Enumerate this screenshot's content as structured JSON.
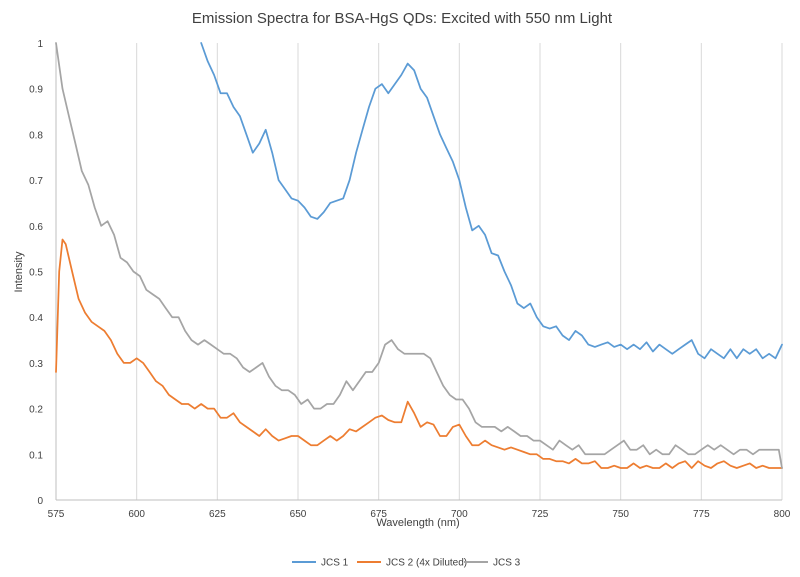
{
  "chart_data": {
    "type": "line",
    "title": "Emission Spectra for BSA-HgS QDs: Excited with 550 nm Light",
    "xlabel": "Wavelength (nm)",
    "ylabel": "Intensity",
    "xlim": [
      575,
      800
    ],
    "ylim": [
      0,
      1
    ],
    "x_ticks": [
      575,
      600,
      625,
      650,
      675,
      700,
      725,
      750,
      775,
      800
    ],
    "y_ticks": [
      0,
      0.1,
      0.2,
      0.3,
      0.4,
      0.5,
      0.6,
      0.7,
      0.8,
      0.9,
      1
    ],
    "x_tick_labels": [
      "575",
      "600",
      "625",
      "650",
      "675",
      "700",
      "725",
      "750",
      "775",
      "800"
    ],
    "y_tick_labels": [
      "0",
      "0.1",
      "0.2",
      "0.3",
      "0.4",
      "0.5",
      "0.6",
      "0.7",
      "0.8",
      "0.9",
      "1"
    ],
    "grid": "vertical",
    "legend_position": "bottom",
    "series": [
      {
        "name": "JCS 1",
        "color": "#5b9bd5",
        "x": [
          620,
          622,
          624,
          626,
          628,
          630,
          632,
          634,
          636,
          638,
          640,
          642,
          644,
          646,
          648,
          650,
          652,
          654,
          656,
          658,
          660,
          662,
          664,
          666,
          668,
          670,
          672,
          674,
          676,
          678,
          680,
          682,
          684,
          686,
          688,
          690,
          692,
          694,
          696,
          698,
          700,
          702,
          704,
          706,
          708,
          710,
          712,
          714,
          716,
          718,
          720,
          722,
          724,
          726,
          728,
          730,
          732,
          734,
          736,
          738,
          740,
          742,
          744,
          746,
          748,
          750,
          752,
          754,
          756,
          758,
          760,
          762,
          764,
          766,
          768,
          770,
          772,
          774,
          776,
          778,
          780,
          782,
          784,
          786,
          788,
          790,
          792,
          794,
          796,
          798,
          800
        ],
        "y": [
          1.0,
          0.96,
          0.93,
          0.89,
          0.89,
          0.86,
          0.84,
          0.8,
          0.76,
          0.78,
          0.81,
          0.76,
          0.7,
          0.68,
          0.66,
          0.655,
          0.64,
          0.62,
          0.615,
          0.63,
          0.65,
          0.655,
          0.66,
          0.7,
          0.76,
          0.81,
          0.86,
          0.9,
          0.91,
          0.89,
          0.91,
          0.93,
          0.955,
          0.94,
          0.9,
          0.88,
          0.84,
          0.8,
          0.77,
          0.74,
          0.7,
          0.64,
          0.59,
          0.6,
          0.58,
          0.54,
          0.535,
          0.5,
          0.47,
          0.43,
          0.42,
          0.43,
          0.4,
          0.38,
          0.375,
          0.38,
          0.36,
          0.35,
          0.37,
          0.36,
          0.34,
          0.335,
          0.34,
          0.345,
          0.335,
          0.34,
          0.33,
          0.34,
          0.33,
          0.345,
          0.325,
          0.34,
          0.33,
          0.32,
          0.33,
          0.34,
          0.35,
          0.32,
          0.31,
          0.33,
          0.32,
          0.31,
          0.33,
          0.31,
          0.33,
          0.32,
          0.33,
          0.31,
          0.32,
          0.31,
          0.34
        ]
      },
      {
        "name": "JCS 2 (4x Diluted)",
        "color": "#ed7d31",
        "x": [
          575,
          576,
          577,
          578,
          580,
          582,
          584,
          586,
          588,
          590,
          592,
          594,
          596,
          598,
          600,
          602,
          604,
          606,
          608,
          610,
          612,
          614,
          616,
          618,
          620,
          622,
          624,
          626,
          628,
          630,
          632,
          634,
          636,
          638,
          640,
          642,
          644,
          646,
          648,
          650,
          652,
          654,
          656,
          658,
          660,
          662,
          664,
          666,
          668,
          670,
          672,
          674,
          676,
          678,
          680,
          682,
          684,
          686,
          688,
          690,
          692,
          694,
          696,
          698,
          700,
          702,
          704,
          706,
          708,
          710,
          712,
          714,
          716,
          718,
          720,
          722,
          724,
          726,
          728,
          730,
          732,
          734,
          736,
          738,
          740,
          742,
          744,
          746,
          748,
          750,
          752,
          754,
          756,
          758,
          760,
          762,
          764,
          766,
          768,
          770,
          772,
          774,
          776,
          778,
          780,
          782,
          784,
          786,
          788,
          790,
          792,
          794,
          796,
          798,
          800
        ],
        "y": [
          0.28,
          0.5,
          0.57,
          0.56,
          0.5,
          0.44,
          0.41,
          0.39,
          0.38,
          0.37,
          0.35,
          0.32,
          0.3,
          0.3,
          0.31,
          0.3,
          0.28,
          0.26,
          0.25,
          0.23,
          0.22,
          0.21,
          0.21,
          0.2,
          0.21,
          0.2,
          0.2,
          0.18,
          0.18,
          0.19,
          0.17,
          0.16,
          0.15,
          0.14,
          0.155,
          0.14,
          0.13,
          0.135,
          0.14,
          0.14,
          0.13,
          0.12,
          0.12,
          0.13,
          0.14,
          0.13,
          0.14,
          0.155,
          0.15,
          0.16,
          0.17,
          0.18,
          0.185,
          0.175,
          0.17,
          0.17,
          0.215,
          0.19,
          0.16,
          0.17,
          0.165,
          0.14,
          0.14,
          0.16,
          0.165,
          0.14,
          0.12,
          0.12,
          0.13,
          0.12,
          0.115,
          0.11,
          0.115,
          0.11,
          0.105,
          0.1,
          0.1,
          0.09,
          0.09,
          0.085,
          0.085,
          0.08,
          0.09,
          0.08,
          0.08,
          0.085,
          0.07,
          0.07,
          0.075,
          0.07,
          0.07,
          0.08,
          0.07,
          0.075,
          0.07,
          0.07,
          0.08,
          0.07,
          0.08,
          0.085,
          0.07,
          0.085,
          0.075,
          0.07,
          0.08,
          0.085,
          0.075,
          0.07,
          0.075,
          0.08,
          0.07,
          0.075,
          0.07,
          0.07,
          0.07
        ]
      },
      {
        "name": "JCS 3",
        "color": "#a5a5a5",
        "x": [
          575,
          577,
          579,
          581,
          583,
          585,
          587,
          589,
          591,
          593,
          595,
          597,
          599,
          601,
          603,
          605,
          607,
          609,
          611,
          613,
          615,
          617,
          619,
          621,
          623,
          625,
          627,
          629,
          631,
          633,
          635,
          637,
          639,
          641,
          643,
          645,
          647,
          649,
          651,
          653,
          655,
          657,
          659,
          661,
          663,
          665,
          667,
          669,
          671,
          673,
          675,
          677,
          679,
          681,
          683,
          685,
          687,
          689,
          691,
          693,
          695,
          697,
          699,
          701,
          703,
          705,
          707,
          709,
          711,
          713,
          715,
          717,
          719,
          721,
          723,
          725,
          727,
          729,
          731,
          733,
          735,
          737,
          739,
          741,
          743,
          745,
          747,
          749,
          751,
          753,
          755,
          757,
          759,
          761,
          763,
          765,
          767,
          769,
          771,
          773,
          775,
          777,
          779,
          781,
          783,
          785,
          787,
          789,
          791,
          793,
          795,
          797,
          799,
          800
        ],
        "y": [
          1.0,
          0.9,
          0.84,
          0.78,
          0.72,
          0.69,
          0.64,
          0.6,
          0.61,
          0.58,
          0.53,
          0.52,
          0.5,
          0.49,
          0.46,
          0.45,
          0.44,
          0.42,
          0.4,
          0.4,
          0.37,
          0.35,
          0.34,
          0.35,
          0.34,
          0.33,
          0.32,
          0.32,
          0.31,
          0.29,
          0.28,
          0.29,
          0.3,
          0.27,
          0.25,
          0.24,
          0.24,
          0.23,
          0.21,
          0.22,
          0.2,
          0.2,
          0.21,
          0.21,
          0.23,
          0.26,
          0.24,
          0.26,
          0.28,
          0.28,
          0.3,
          0.34,
          0.35,
          0.33,
          0.32,
          0.32,
          0.32,
          0.32,
          0.31,
          0.28,
          0.25,
          0.23,
          0.22,
          0.22,
          0.2,
          0.17,
          0.16,
          0.16,
          0.16,
          0.15,
          0.16,
          0.15,
          0.14,
          0.14,
          0.13,
          0.13,
          0.12,
          0.11,
          0.13,
          0.12,
          0.11,
          0.12,
          0.1,
          0.1,
          0.1,
          0.1,
          0.11,
          0.12,
          0.13,
          0.11,
          0.11,
          0.12,
          0.1,
          0.11,
          0.1,
          0.1,
          0.12,
          0.11,
          0.1,
          0.1,
          0.11,
          0.12,
          0.11,
          0.12,
          0.11,
          0.1,
          0.11,
          0.11,
          0.1,
          0.11,
          0.11,
          0.11,
          0.11,
          0.07
        ]
      }
    ]
  }
}
